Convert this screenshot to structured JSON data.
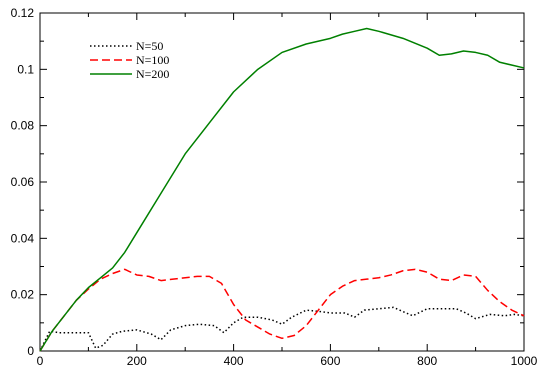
{
  "chart_data": {
    "type": "line",
    "title": "",
    "xlabel": "",
    "ylabel": "",
    "xlim": [
      0,
      1000
    ],
    "ylim": [
      0,
      0.12
    ],
    "xticks": [
      0,
      200,
      400,
      600,
      800,
      1000
    ],
    "yticks": [
      0,
      0.02,
      0.04,
      0.06,
      0.08,
      0.1,
      0.12
    ],
    "xtick_labels": [
      "0",
      "200",
      "400",
      "600",
      "800",
      "1000"
    ],
    "ytick_labels": [
      "0",
      "0.02",
      "0.04",
      "0.06",
      "0.08",
      "0.1",
      "0.12"
    ],
    "grid": false,
    "legend_position": "top-left",
    "series": [
      {
        "name": "N=50",
        "color": "#000000",
        "dash": "dotted",
        "x": [
          0,
          20,
          40,
          60,
          80,
          100,
          115,
          130,
          150,
          170,
          200,
          230,
          250,
          270,
          300,
          330,
          360,
          380,
          400,
          420,
          450,
          480,
          500,
          520,
          550,
          580,
          600,
          630,
          650,
          670,
          700,
          730,
          750,
          770,
          800,
          830,
          860,
          880,
          900,
          930,
          960,
          980,
          1000
        ],
        "y": [
          0,
          0.007,
          0.0065,
          0.0065,
          0.0065,
          0.0065,
          0.001,
          0.002,
          0.006,
          0.007,
          0.0075,
          0.006,
          0.004,
          0.0075,
          0.009,
          0.0095,
          0.009,
          0.0065,
          0.01,
          0.012,
          0.012,
          0.011,
          0.0095,
          0.012,
          0.0145,
          0.014,
          0.0135,
          0.0135,
          0.012,
          0.0145,
          0.015,
          0.0155,
          0.014,
          0.0125,
          0.015,
          0.015,
          0.015,
          0.0135,
          0.0115,
          0.013,
          0.0125,
          0.013,
          0.0125
        ]
      },
      {
        "name": "N=100",
        "color": "#ff0000",
        "dash": "dashed",
        "x": [
          0,
          25,
          50,
          75,
          100,
          125,
          150,
          175,
          200,
          225,
          250,
          275,
          300,
          325,
          350,
          375,
          400,
          425,
          450,
          475,
          500,
          525,
          550,
          575,
          600,
          625,
          650,
          675,
          700,
          725,
          750,
          775,
          800,
          825,
          850,
          875,
          900,
          925,
          950,
          975,
          1000
        ],
        "y": [
          0,
          0.007,
          0.0125,
          0.018,
          0.022,
          0.0255,
          0.0275,
          0.029,
          0.027,
          0.0265,
          0.025,
          0.0255,
          0.026,
          0.0265,
          0.0265,
          0.024,
          0.0165,
          0.011,
          0.0085,
          0.006,
          0.0045,
          0.0055,
          0.009,
          0.0145,
          0.02,
          0.023,
          0.025,
          0.0255,
          0.026,
          0.027,
          0.0285,
          0.029,
          0.028,
          0.0255,
          0.025,
          0.027,
          0.0265,
          0.0215,
          0.0175,
          0.0145,
          0.0125
        ]
      },
      {
        "name": "N=200",
        "color": "#008000",
        "dash": "solid",
        "x": [
          0,
          25,
          50,
          75,
          100,
          125,
          150,
          175,
          200,
          250,
          300,
          350,
          400,
          450,
          500,
          550,
          600,
          625,
          650,
          675,
          700,
          750,
          800,
          825,
          850,
          875,
          900,
          925,
          950,
          1000
        ],
        "y": [
          0,
          0.007,
          0.0125,
          0.018,
          0.0225,
          0.026,
          0.0295,
          0.035,
          0.042,
          0.056,
          0.07,
          0.081,
          0.092,
          0.1,
          0.106,
          0.109,
          0.111,
          0.1125,
          0.1135,
          0.1145,
          0.1135,
          0.111,
          0.1075,
          0.105,
          0.1055,
          0.1065,
          0.106,
          0.105,
          0.1025,
          0.1005
        ]
      }
    ]
  }
}
